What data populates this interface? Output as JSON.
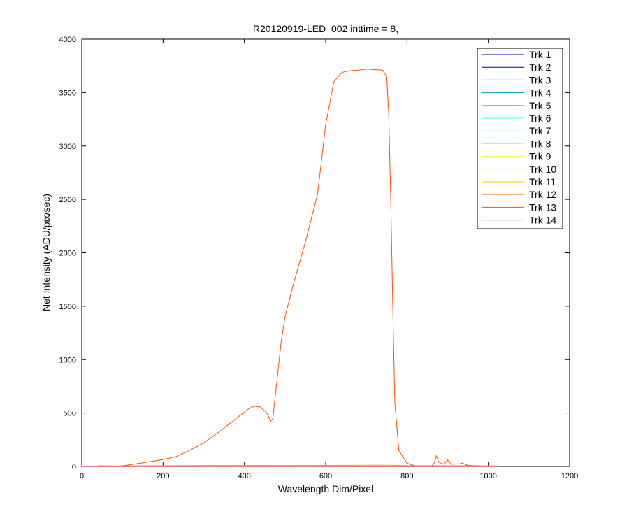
{
  "chart_data": {
    "type": "line",
    "title": "R20120919-LED_002 inttime = 8,",
    "xlabel": "Wavelength Dim/Pixel",
    "ylabel": "Net Intensity (ADU/pix/sec)",
    "xlim": [
      0,
      1200
    ],
    "ylim": [
      0,
      4000
    ],
    "xticks": [
      0,
      200,
      400,
      600,
      800,
      1000,
      1200
    ],
    "yticks": [
      0,
      500,
      1000,
      1500,
      2000,
      2500,
      3000,
      3500,
      4000
    ],
    "grid": false,
    "legend_position": "top-right",
    "series": [
      {
        "name": "Trk 1",
        "color": "#00008f",
        "x": [
          1,
          1024
        ],
        "y": [
          0,
          0
        ]
      },
      {
        "name": "Trk 2",
        "color": "#0000c8",
        "x": [
          1,
          1024
        ],
        "y": [
          0,
          0
        ]
      },
      {
        "name": "Trk 3",
        "color": "#0050ff",
        "x": [
          1,
          1024
        ],
        "y": [
          0,
          0
        ]
      },
      {
        "name": "Trk 4",
        "color": "#0090d0",
        "x": [
          1,
          1024
        ],
        "y": [
          0,
          0
        ]
      },
      {
        "name": "Trk 5",
        "color": "#00c8ff",
        "x": [
          1,
          1024
        ],
        "y": [
          0,
          0
        ]
      },
      {
        "name": "Trk 6",
        "color": "#40ffff",
        "x": [
          1,
          1024
        ],
        "y": [
          0,
          0
        ]
      },
      {
        "name": "Trk 7",
        "color": "#70ffd0",
        "x": [
          1,
          1024
        ],
        "y": [
          0,
          0
        ]
      },
      {
        "name": "Trk 8",
        "color": "#a0ff90",
        "x": [
          1,
          1024
        ],
        "y": [
          0,
          0
        ]
      },
      {
        "name": "Trk 9",
        "color": "#d0ff50",
        "x": [
          1,
          1024
        ],
        "y": [
          0,
          0
        ]
      },
      {
        "name": "Trk 10",
        "color": "#ffff00",
        "x": [
          1,
          1024
        ],
        "y": [
          0,
          0
        ]
      },
      {
        "name": "Trk 11",
        "color": "#ffc800",
        "x": [
          1,
          1024
        ],
        "y": [
          0,
          0
        ]
      },
      {
        "name": "Trk 12",
        "color": "#ff9040",
        "x": [
          40,
          80,
          200,
          300,
          440,
          470,
          600,
          700,
          760,
          800,
          1024
        ],
        "y": [
          8,
          5,
          7,
          9,
          10,
          9,
          10,
          11,
          12,
          8,
          6
        ]
      },
      {
        "name": "Trk 13",
        "color": "#ff5000",
        "x": [
          85,
          100,
          150,
          200,
          230,
          260,
          300,
          340,
          380,
          410,
          425,
          440,
          455,
          465,
          470,
          480,
          490,
          500,
          520,
          550,
          580,
          600,
          620,
          640,
          660,
          680,
          700,
          720,
          740,
          750,
          755,
          760,
          765,
          770,
          780,
          800,
          820,
          840,
          860,
          868,
          872,
          878,
          890,
          900,
          910,
          930,
          935,
          950,
          1000,
          1024
        ],
        "y": [
          0,
          5,
          35,
          65,
          90,
          140,
          220,
          330,
          450,
          540,
          565,
          555,
          500,
          425,
          450,
          800,
          1150,
          1400,
          1700,
          2100,
          2550,
          3200,
          3600,
          3690,
          3705,
          3710,
          3720,
          3715,
          3710,
          3650,
          3300,
          2500,
          1500,
          600,
          150,
          30,
          5,
          0,
          0,
          40,
          100,
          40,
          20,
          60,
          20,
          25,
          30,
          10,
          0,
          0
        ]
      },
      {
        "name": "Trk 14",
        "color": "#d00000",
        "x": [
          1,
          1024
        ],
        "y": [
          0,
          0
        ]
      }
    ]
  }
}
